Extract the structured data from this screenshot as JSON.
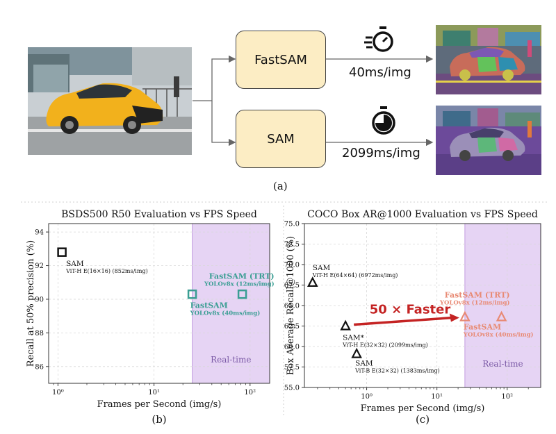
{
  "pipeline": {
    "caption": "(a)",
    "fast_model": "FastSAM",
    "fast_speed": "40ms/img",
    "sam_model": "SAM",
    "sam_speed": "2099ms/img",
    "fast_speed_icon": "stopwatch-motion-icon",
    "sam_speed_icon": "stopwatch-icon"
  },
  "chart_data": [
    {
      "type": "scatter",
      "panel": "(b)",
      "title": "BSDS500 R50 Evaluation vs FPS Speed",
      "xlabel": "Frames per Second (img/s)",
      "ylabel": "Recall at 50% precision (%)",
      "xscale": "log",
      "xlim": [
        0.8,
        160
      ],
      "ylim": [
        85,
        94.5
      ],
      "xticks": [
        {
          "v": 1,
          "label": "10⁰"
        },
        {
          "v": 10,
          "label": "10¹"
        },
        {
          "v": 100,
          "label": "10²"
        }
      ],
      "yticks": [
        86,
        88,
        90,
        92,
        94
      ],
      "grid": true,
      "realtime_band": {
        "from": 25,
        "to": 160,
        "label": "Real-time",
        "color": "#e2cdf2"
      },
      "points": [
        {
          "name": "SAM",
          "sub": "ViT-H E(16×16) (852ms/img)",
          "x": 1.1,
          "y": 92.8,
          "marker": "square",
          "color": "#111111"
        },
        {
          "name": "FastSAM",
          "sub": "YOLOv8x (40ms/img)",
          "x": 25,
          "y": 90.3,
          "marker": "square",
          "color": "#3a9e93"
        },
        {
          "name": "FastSAM (TRT)",
          "sub": "YOLOv8x (12ms/img)",
          "x": 83,
          "y": 90.3,
          "marker": "square",
          "color": "#3a9e93"
        }
      ]
    },
    {
      "type": "scatter",
      "panel": "(c)",
      "title": "COCO Box AR@1000 Evaluation vs FPS Speed",
      "xlabel": "Frames per Second (img/s)",
      "ylabel": "Box Average Recall@1000 (%)",
      "xscale": "log",
      "xlim": [
        0.13,
        300
      ],
      "ylim": [
        55,
        75
      ],
      "xticks": [
        {
          "v": 1,
          "label": "10⁰"
        },
        {
          "v": 10,
          "label": "10¹"
        },
        {
          "v": 100,
          "label": "10²"
        }
      ],
      "yticks": [
        55.0,
        57.5,
        60.0,
        62.5,
        65.0,
        67.5,
        70.0,
        72.5,
        75.0
      ],
      "grid": true,
      "realtime_band": {
        "from": 25,
        "to": 300,
        "label": "Real-time",
        "color": "#e2cdf2"
      },
      "annotation": "50 × Faster",
      "points": [
        {
          "name": "SAM",
          "sub": "ViT-H E(64×64) (6972ms/img)",
          "x": 0.17,
          "y": 67.8,
          "marker": "triangle",
          "color": "#111111"
        },
        {
          "name": "SAM*",
          "sub": "ViT-H E(32×32) (2099ms/img)",
          "x": 0.5,
          "y": 62.5,
          "marker": "triangle",
          "color": "#111111"
        },
        {
          "name": "SAM",
          "sub": "ViT-B E(32×32) (1383ms/img)",
          "x": 0.72,
          "y": 59.1,
          "marker": "triangle",
          "color": "#111111"
        },
        {
          "name": "FastSAM",
          "sub": "YOLOv8x (40ms/img)",
          "x": 25,
          "y": 63.6,
          "marker": "triangle",
          "color": "#e88a74"
        },
        {
          "name": "FastSAM (TRT)",
          "sub": "YOLOv8x (12ms/img)",
          "x": 83,
          "y": 63.6,
          "marker": "triangle",
          "color": "#e88a74"
        }
      ]
    }
  ]
}
